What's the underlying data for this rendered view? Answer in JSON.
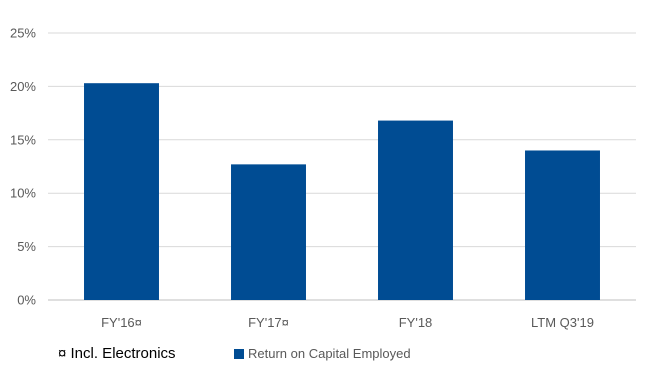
{
  "chart_data": {
    "type": "bar",
    "categories": [
      "FY'16¤",
      "FY'17¤",
      "FY'18",
      "LTM Q3'19"
    ],
    "series": [
      {
        "name": "Return on Capital Employed",
        "values": [
          20.3,
          12.7,
          16.8,
          14.0
        ],
        "color": "#004c93"
      }
    ],
    "y_ticks": [
      "0%",
      "5%",
      "10%",
      "15%",
      "20%",
      "25%"
    ],
    "ylim": [
      0,
      25
    ],
    "grid": true,
    "legend_position": "bottom"
  },
  "footnote": "¤ Incl. Electronics"
}
